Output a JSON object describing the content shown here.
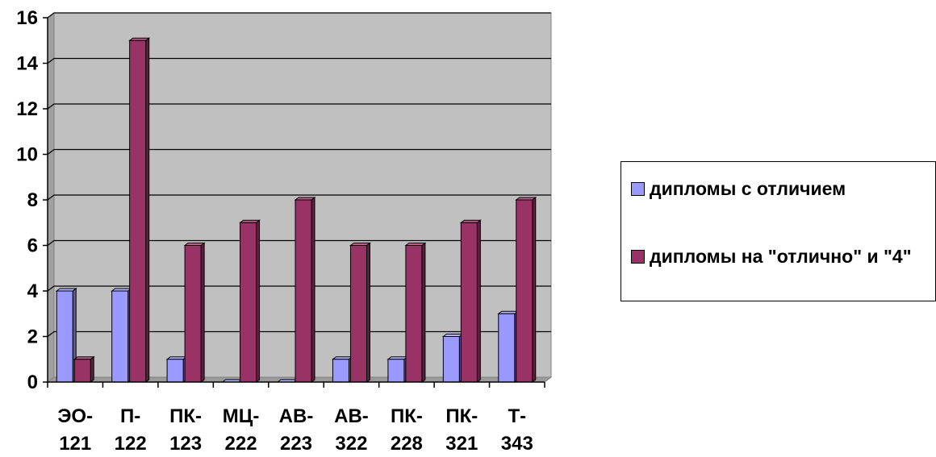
{
  "chart_data": {
    "type": "bar",
    "categories": [
      [
        "ЭО-",
        "121"
      ],
      [
        "П-",
        "122"
      ],
      [
        "ПК-",
        "123"
      ],
      [
        "МЦ-",
        "222"
      ],
      [
        "АВ-",
        "223"
      ],
      [
        "АВ-",
        "322"
      ],
      [
        "ПК-",
        "228"
      ],
      [
        "ПК-",
        "321"
      ],
      [
        "Т-",
        "343"
      ]
    ],
    "series": [
      {
        "name": "дипломы с отличием",
        "color": "#9999ff",
        "values": [
          4,
          4,
          1,
          0,
          0,
          1,
          1,
          2,
          3
        ]
      },
      {
        "name": "дипломы на \"отлично\" и \"4\"",
        "color": "#993366",
        "values": [
          1,
          15,
          6,
          7,
          8,
          6,
          6,
          7,
          8
        ]
      }
    ],
    "ylim": [
      0,
      16
    ],
    "yticks": [
      "0",
      "2",
      "4",
      "6",
      "8",
      "10",
      "12",
      "14",
      "16"
    ],
    "grid": true,
    "plot_background": "#c0c0c0",
    "legend_position": "right"
  }
}
